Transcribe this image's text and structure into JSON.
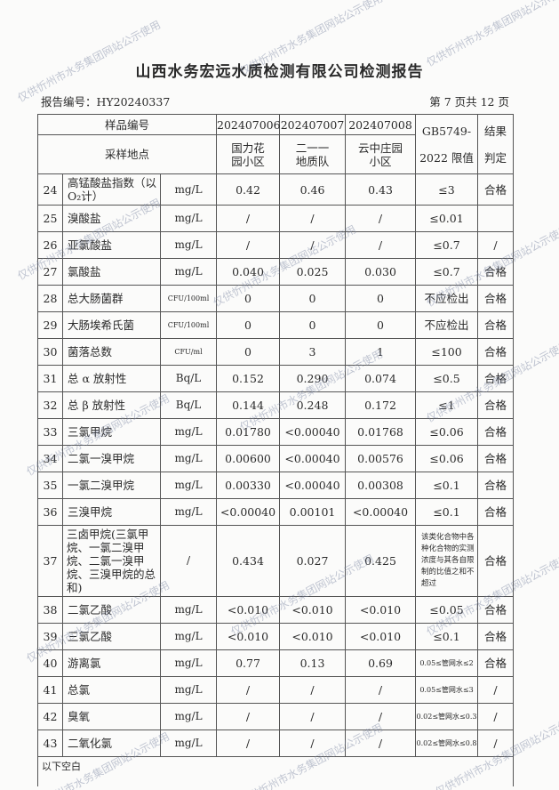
{
  "title": "山西水务宏远水质检测有限公司检测报告",
  "report_no": "报告编号：HY20240337",
  "page_info": "第 7 页共 12 页",
  "header": {
    "sample_no_label": "样品编号",
    "site_label": "采样地点",
    "samples": [
      "202407006",
      "202407007",
      "202407008"
    ],
    "sites": [
      "国力花园小区",
      "二一一地质队",
      "云中庄园小区"
    ],
    "limit_label_1": "GB5749-",
    "limit_label_2": "2022 限值",
    "result_label_1": "结果",
    "result_label_2": "判定"
  },
  "rows": [
    {
      "no": "24",
      "name": "高锰酸盐指数（以O₂计）",
      "unit": "mg/L",
      "v": [
        "0.42",
        "0.46",
        "0.43"
      ],
      "limit": "≤3",
      "result": "合格"
    },
    {
      "no": "25",
      "name": "溴酸盐",
      "unit": "mg/L",
      "v": [
        "/",
        "/",
        "/"
      ],
      "limit": "≤0.01",
      "result": ""
    },
    {
      "no": "26",
      "name": "亚氯酸盐",
      "unit": "mg/L",
      "v": [
        "/",
        "/",
        "/"
      ],
      "limit": "≤0.7",
      "result": "/"
    },
    {
      "no": "27",
      "name": "氯酸盐",
      "unit": "mg/L",
      "v": [
        "0.040",
        "0.025",
        "0.030"
      ],
      "limit": "≤0.7",
      "result": "合格"
    },
    {
      "no": "28",
      "name": "总大肠菌群",
      "unit": "CFU/100ml",
      "v": [
        "0",
        "0",
        "0"
      ],
      "limit": "不应检出",
      "result": "合格"
    },
    {
      "no": "29",
      "name": "大肠埃希氏菌",
      "unit": "CFU/100ml",
      "v": [
        "0",
        "0",
        "0"
      ],
      "limit": "不应检出",
      "result": "合格"
    },
    {
      "no": "30",
      "name": "菌落总数",
      "unit": "CFU/ml",
      "v": [
        "0",
        "3",
        "1"
      ],
      "limit": "≤100",
      "result": "合格"
    },
    {
      "no": "31",
      "name": "总 α 放射性",
      "unit": "Bq/L",
      "v": [
        "0.152",
        "0.290",
        "0.074"
      ],
      "limit": "≤0.5",
      "result": "合格"
    },
    {
      "no": "32",
      "name": "总 β 放射性",
      "unit": "Bq/L",
      "v": [
        "0.144",
        "0.248",
        "0.172"
      ],
      "limit": "≤1",
      "result": "合格"
    },
    {
      "no": "33",
      "name": "三氯甲烷",
      "unit": "mg/L",
      "v": [
        "0.01780",
        "<0.00040",
        "0.01768"
      ],
      "limit": "≤0.06",
      "result": "合格"
    },
    {
      "no": "34",
      "name": "二氯一溴甲烷",
      "unit": "mg/L",
      "v": [
        "0.00600",
        "<0.00040",
        "0.00576"
      ],
      "limit": "≤0.06",
      "result": "合格"
    },
    {
      "no": "35",
      "name": "一氯二溴甲烷",
      "unit": "mg/L",
      "v": [
        "0.00330",
        "<0.00040",
        "0.00308"
      ],
      "limit": "≤0.1",
      "result": "合格"
    },
    {
      "no": "36",
      "name": "三溴甲烷",
      "unit": "mg/L",
      "v": [
        "<0.00040",
        "0.00101",
        "<0.00040"
      ],
      "limit": "≤0.1",
      "result": "合格"
    },
    {
      "no": "37",
      "name": "三卤甲烷(三氯甲烷、一氯二溴甲烷、二氯一溴甲烷、三溴甲烷的总和)",
      "unit": "/",
      "v": [
        "0.434",
        "0.027",
        "0.425"
      ],
      "limit": "该类化合物中各种化合物的实测浓度与其各自限制的比值之和不超过",
      "result": "合格"
    },
    {
      "no": "38",
      "name": "二氯乙酸",
      "unit": "mg/L",
      "v": [
        "<0.010",
        "<0.010",
        "<0.010"
      ],
      "limit": "≤0.05",
      "result": "合格"
    },
    {
      "no": "39",
      "name": "三氯乙酸",
      "unit": "mg/L",
      "v": [
        "<0.010",
        "<0.010",
        "<0.010"
      ],
      "limit": "≤0.1",
      "result": "合格"
    },
    {
      "no": "40",
      "name": "游离氯",
      "unit": "mg/L",
      "v": [
        "0.77",
        "0.13",
        "0.69"
      ],
      "limit": "0.05≤管网水≤2",
      "result": "合格"
    },
    {
      "no": "41",
      "name": "总氯",
      "unit": "mg/L",
      "v": [
        "/",
        "/",
        "/"
      ],
      "limit": "0.05≤管网水≤3",
      "result": "/"
    },
    {
      "no": "42",
      "name": "臭氧",
      "unit": "mg/L",
      "v": [
        "/",
        "/",
        "/"
      ],
      "limit": "0.02≤管网水≤0.3",
      "result": "/"
    },
    {
      "no": "43",
      "name": "二氧化氯",
      "unit": "mg/L",
      "v": [
        "/",
        "/",
        "/"
      ],
      "limit": "0.02≤管网水≤0.8",
      "result": "/"
    }
  ],
  "footer": "以下空白",
  "watermark": "仅供忻州市水务集团网站公示使用"
}
